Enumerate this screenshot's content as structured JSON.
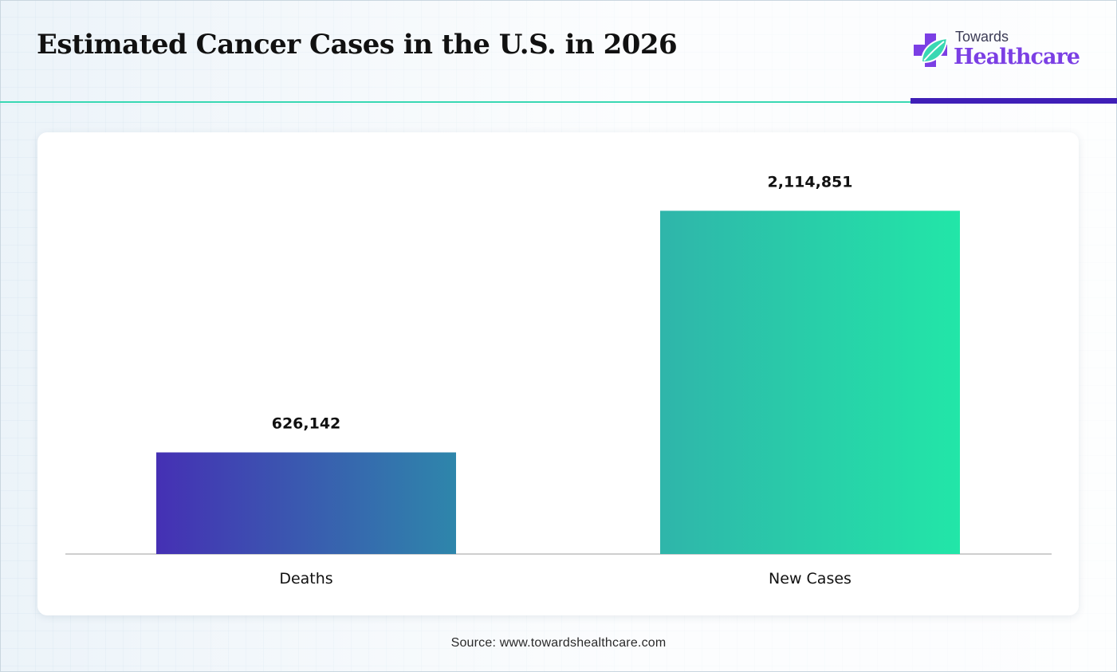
{
  "header": {
    "title": "Estimated Cancer Cases in the U.S. in 2026"
  },
  "logo": {
    "line1": "Towards",
    "line2": "Healthcare",
    "icon": "medical-cross-leaf-icon",
    "colors": {
      "cross": "#7b3fe4",
      "leaf": "#39d8b3",
      "wordmark": "#7b3fe4"
    }
  },
  "colors": {
    "header_rule": "#39d8b3",
    "header_accent": "#3f1fb7"
  },
  "chart_data": {
    "type": "bar",
    "title": "Estimated Cancer Cases in the U.S. in 2026",
    "xlabel": "",
    "ylabel": "",
    "categories": [
      "Deaths",
      "New Cases"
    ],
    "values": [
      626142,
      2114851
    ],
    "value_labels": [
      "626,142",
      "2,114,851"
    ],
    "ylim": [
      0,
      2500000
    ],
    "grid": false,
    "legend": "none",
    "bar_colors": [
      [
        "#4530b4",
        "#2e86ab"
      ],
      [
        "#2fb5aa",
        "#22e6a8"
      ]
    ]
  },
  "footer": {
    "source": "Source: www.towardshealthcare.com"
  }
}
